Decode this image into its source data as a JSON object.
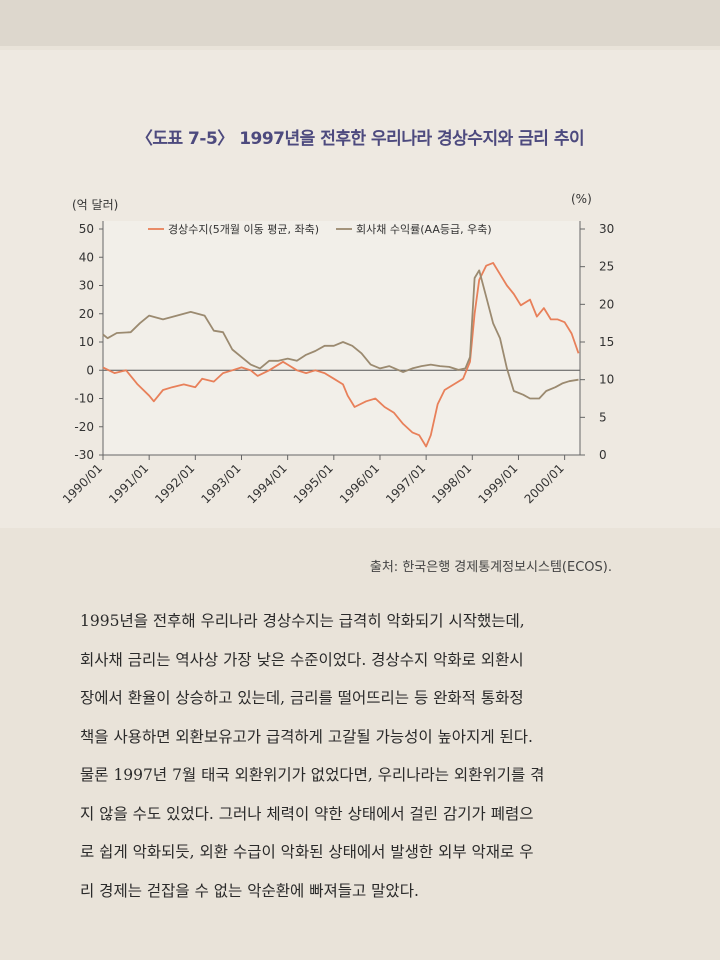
{
  "title": "〈도표 7-5〉 1997년을 전후한 우리나라 경상수지와 금리 추이",
  "source": "출처: 한국은행 경제통계정보시스템(ECOS).",
  "body_lines": [
    "1995년을 전후해 우리나라 경상수지는 급격히 악화되기 시작했는데,",
    "회사채 금리는 역사상 가장 낮은 수준이었다. 경상수지 악화로 외환시",
    "장에서 환율이 상승하고 있는데, 금리를 떨어뜨리는 등 완화적 통화정",
    "책을 사용하면 외환보유고가 급격하게 고갈될 가능성이 높아지게 된다.",
    "물론 1997년 7월 태국 외환위기가 없었다면, 우리나라는 외환위기를 겪",
    "지 않을 수도 있었다. 그러나 체력이 약한 상태에서 걸린 감기가 폐렴으",
    "로 쉽게 악화되듯, 외환 수급이 악화된 상태에서 발생한 외부 악재로 우",
    "리 경제는 걷잡을 수 없는 악순환에 빠져들고 말았다."
  ],
  "colors": {
    "current_account": "#e8805a",
    "bond_yield": "#9b8a70",
    "title": "#4d4a7e"
  },
  "chart_data": {
    "type": "line",
    "left_unit": "(억 달러)",
    "right_unit": "(%)",
    "ylim_left": [
      -30,
      50
    ],
    "ylim_right": [
      0,
      30
    ],
    "left_ticks": [
      "50",
      "40",
      "30",
      "20",
      "10",
      "0",
      "-10",
      "-20",
      "-30"
    ],
    "right_ticks": [
      "30",
      "25",
      "20",
      "15",
      "10",
      "5",
      "0"
    ],
    "x_ticks": [
      "1990/01",
      "1991/01",
      "1992/01",
      "1993/01",
      "1994/01",
      "1995/01",
      "1996/01",
      "1997/01",
      "1998/01",
      "1999/01",
      "2000/01"
    ],
    "series": [
      {
        "name": "경상수지(5개월 이동 평균, 좌축)",
        "axis": "left",
        "color": "#e8805a",
        "points": [
          [
            1990.0,
            1
          ],
          [
            1990.25,
            -1
          ],
          [
            1990.5,
            0
          ],
          [
            1990.75,
            -5
          ],
          [
            1991.0,
            -9
          ],
          [
            1991.1,
            -11
          ],
          [
            1991.3,
            -7
          ],
          [
            1991.5,
            -6
          ],
          [
            1991.75,
            -5
          ],
          [
            1992.0,
            -6
          ],
          [
            1992.15,
            -3
          ],
          [
            1992.4,
            -4
          ],
          [
            1992.6,
            -1
          ],
          [
            1992.8,
            0
          ],
          [
            1993.0,
            1
          ],
          [
            1993.2,
            0
          ],
          [
            1993.35,
            -2
          ],
          [
            1993.6,
            0
          ],
          [
            1993.9,
            3
          ],
          [
            1994.0,
            2
          ],
          [
            1994.2,
            0
          ],
          [
            1994.4,
            -1
          ],
          [
            1994.6,
            0
          ],
          [
            1994.8,
            -1
          ],
          [
            1995.0,
            -3
          ],
          [
            1995.2,
            -5
          ],
          [
            1995.3,
            -9
          ],
          [
            1995.45,
            -13
          ],
          [
            1995.7,
            -11
          ],
          [
            1995.9,
            -10
          ],
          [
            1996.1,
            -13
          ],
          [
            1996.3,
            -15
          ],
          [
            1996.5,
            -19
          ],
          [
            1996.7,
            -22
          ],
          [
            1996.85,
            -23
          ],
          [
            1997.0,
            -27
          ],
          [
            1997.1,
            -23
          ],
          [
            1997.25,
            -12
          ],
          [
            1997.4,
            -7
          ],
          [
            1997.6,
            -5
          ],
          [
            1997.8,
            -3
          ],
          [
            1997.95,
            3
          ],
          [
            1998.05,
            20
          ],
          [
            1998.15,
            32
          ],
          [
            1998.3,
            37
          ],
          [
            1998.45,
            38
          ],
          [
            1998.6,
            34
          ],
          [
            1998.75,
            30
          ],
          [
            1998.9,
            27
          ],
          [
            1999.05,
            23
          ],
          [
            1999.25,
            25
          ],
          [
            1999.4,
            19
          ],
          [
            1999.55,
            22
          ],
          [
            1999.7,
            18
          ],
          [
            1999.85,
            18
          ],
          [
            2000.0,
            17
          ],
          [
            2000.15,
            13
          ],
          [
            2000.3,
            6
          ]
        ]
      },
      {
        "name": "회사채 수익률(AA등급, 우축)",
        "axis": "right",
        "color": "#9b8a70",
        "points": [
          [
            1990.0,
            16
          ],
          [
            1990.1,
            15.5
          ],
          [
            1990.3,
            16.2
          ],
          [
            1990.6,
            16.3
          ],
          [
            1990.8,
            17.5
          ],
          [
            1991.0,
            18.5
          ],
          [
            1991.3,
            18
          ],
          [
            1991.6,
            18.5
          ],
          [
            1991.9,
            19
          ],
          [
            1992.2,
            18.5
          ],
          [
            1992.4,
            16.5
          ],
          [
            1992.6,
            16.3
          ],
          [
            1992.8,
            14
          ],
          [
            1993.0,
            13
          ],
          [
            1993.2,
            12
          ],
          [
            1993.4,
            11.5
          ],
          [
            1993.6,
            12.5
          ],
          [
            1993.8,
            12.5
          ],
          [
            1994.0,
            12.8
          ],
          [
            1994.2,
            12.5
          ],
          [
            1994.4,
            13.3
          ],
          [
            1994.6,
            13.8
          ],
          [
            1994.8,
            14.5
          ],
          [
            1995.0,
            14.5
          ],
          [
            1995.2,
            15
          ],
          [
            1995.4,
            14.5
          ],
          [
            1995.6,
            13.5
          ],
          [
            1995.8,
            12
          ],
          [
            1996.0,
            11.5
          ],
          [
            1996.2,
            11.8
          ],
          [
            1996.5,
            11
          ],
          [
            1996.7,
            11.5
          ],
          [
            1996.9,
            11.8
          ],
          [
            1997.1,
            12
          ],
          [
            1997.3,
            11.8
          ],
          [
            1997.5,
            11.7
          ],
          [
            1997.7,
            11.3
          ],
          [
            1997.85,
            11.5
          ],
          [
            1997.95,
            13
          ],
          [
            1998.05,
            23.5
          ],
          [
            1998.15,
            24.5
          ],
          [
            1998.3,
            21
          ],
          [
            1998.45,
            17.5
          ],
          [
            1998.6,
            15.5
          ],
          [
            1998.75,
            11.5
          ],
          [
            1998.9,
            8.5
          ],
          [
            1999.1,
            8
          ],
          [
            1999.25,
            7.5
          ],
          [
            1999.45,
            7.5
          ],
          [
            1999.6,
            8.5
          ],
          [
            1999.8,
            9
          ],
          [
            1999.95,
            9.5
          ],
          [
            2000.1,
            9.8
          ],
          [
            2000.3,
            10
          ]
        ]
      }
    ]
  }
}
